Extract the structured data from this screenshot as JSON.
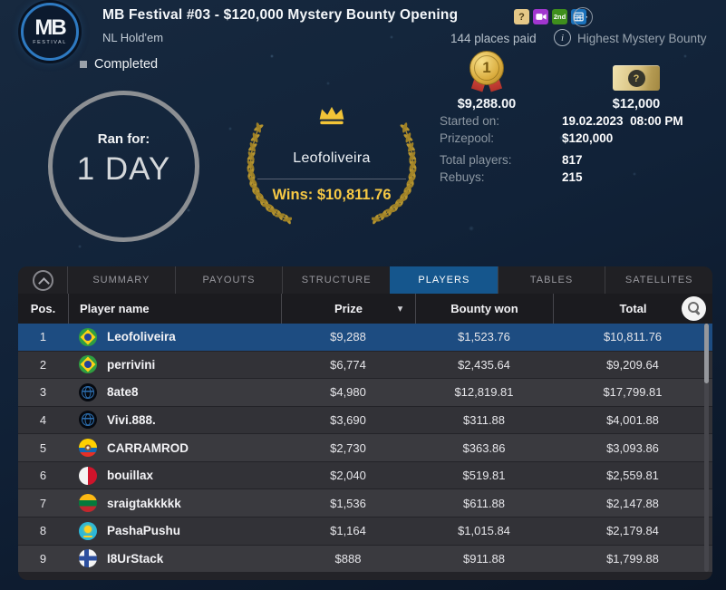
{
  "header": {
    "logo_line1": "MB",
    "logo_line2": "FESTIVAL",
    "title": "MB Festival #03 - $120,000 Mystery Bounty Opening",
    "subtitle": "NL Hold'em",
    "badge_q": "?",
    "badge_2nd": "2nd",
    "more_glyph": "⋯"
  },
  "summary": {
    "places_paid": "144 places paid",
    "highest_mystery_bounty_label": "Highest Mystery Bounty",
    "medal_rank": "1",
    "first_prize": "$9,288.00",
    "ticket_glyph": "?",
    "highest_bounty_value": "$12,000",
    "status": "Completed",
    "ran_for_label": "Ran for:",
    "ran_for_value": "1 DAY",
    "winner": {
      "name": "Leofoliveira",
      "wins": "Wins: $10,811.76"
    },
    "stats": [
      {
        "label": "Started on:",
        "value": "19.02.2023  08:00 PM"
      },
      {
        "label": "Prizepool:",
        "value": "$120,000"
      },
      {
        "label": "Total players:",
        "value": "817"
      },
      {
        "label": "Rebuys:",
        "value": "215"
      }
    ]
  },
  "tabs": [
    {
      "label": "SUMMARY",
      "active": false
    },
    {
      "label": "PAYOUTS",
      "active": false
    },
    {
      "label": "STRUCTURE",
      "active": false
    },
    {
      "label": "PLAYERS",
      "active": true
    },
    {
      "label": "TABLES",
      "active": false
    },
    {
      "label": "SATELLITES",
      "active": false
    }
  ],
  "table": {
    "columns": {
      "pos": "Pos.",
      "player": "Player name",
      "prize": "Prize",
      "bounty": "Bounty won",
      "total": "Total"
    },
    "sort_caret": "▾",
    "rows": [
      {
        "pos": "1",
        "flag": "br",
        "flag_name": "flag-brazil",
        "name": "Leofoliveira",
        "prize": "$9,288",
        "bounty": "$1,523.76",
        "total": "$10,811.76",
        "selected": true
      },
      {
        "pos": "2",
        "flag": "br",
        "flag_name": "flag-brazil",
        "name": "perrivini",
        "prize": "$6,774",
        "bounty": "$2,435.64",
        "total": "$9,209.64",
        "selected": false
      },
      {
        "pos": "3",
        "flag": "globe",
        "flag_name": "flag-international",
        "name": "8ate8",
        "prize": "$4,980",
        "bounty": "$12,819.81",
        "total": "$17,799.81",
        "selected": false
      },
      {
        "pos": "4",
        "flag": "globe",
        "flag_name": "flag-international",
        "name": "Vivi.888.",
        "prize": "$3,690",
        "bounty": "$311.88",
        "total": "$4,001.88",
        "selected": false
      },
      {
        "pos": "5",
        "flag": "ec",
        "flag_name": "flag-ecuador",
        "name": "CARRAMROD",
        "prize": "$2,730",
        "bounty": "$363.86",
        "total": "$3,093.86",
        "selected": false
      },
      {
        "pos": "6",
        "flag": "mt",
        "flag_name": "flag-malta",
        "name": "bouillax",
        "prize": "$2,040",
        "bounty": "$519.81",
        "total": "$2,559.81",
        "selected": false
      },
      {
        "pos": "7",
        "flag": "lt",
        "flag_name": "flag-lithuania",
        "name": "sraigtakkkkk",
        "prize": "$1,536",
        "bounty": "$611.88",
        "total": "$2,147.88",
        "selected": false
      },
      {
        "pos": "8",
        "flag": "kz",
        "flag_name": "flag-kazakhstan",
        "name": "PashaPushu",
        "prize": "$1,164",
        "bounty": "$1,015.84",
        "total": "$2,179.84",
        "selected": false
      },
      {
        "pos": "9",
        "flag": "fi",
        "flag_name": "flag-finland",
        "name": "I8UrStack",
        "prize": "$888",
        "bounty": "$911.88",
        "total": "$1,799.88",
        "selected": false
      }
    ]
  },
  "colors": {
    "active_tab": "#15568d",
    "selected_row": "#1d4c81",
    "gold_accent": "#f6c844",
    "background_top": "#17293f",
    "background_bottom": "#0a1526"
  }
}
